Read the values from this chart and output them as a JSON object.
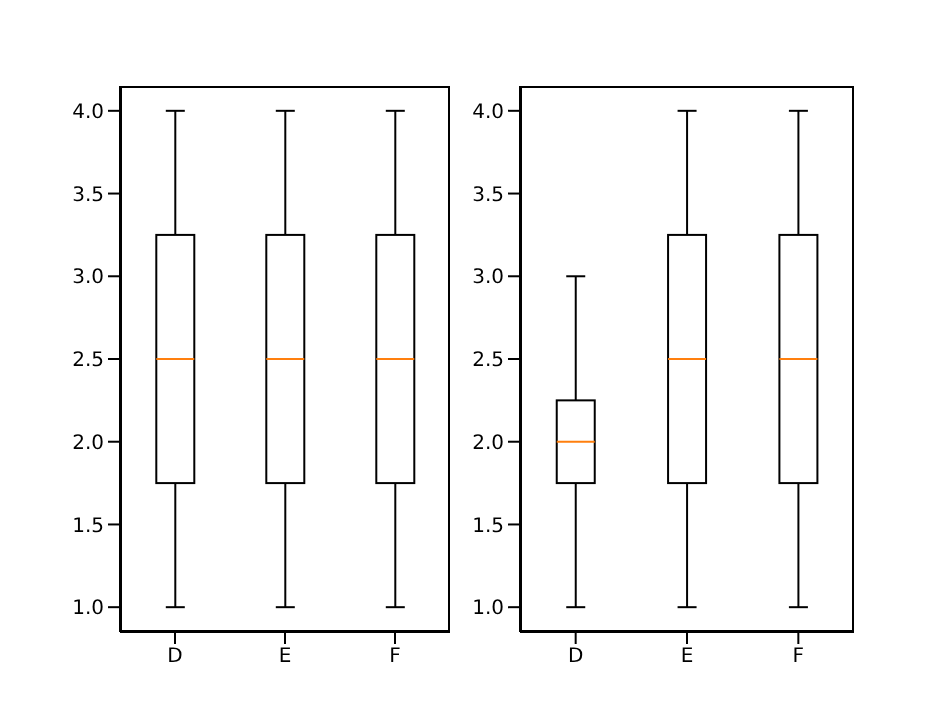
{
  "chart_data": [
    {
      "type": "box",
      "categories": [
        "D",
        "E",
        "F"
      ],
      "boxes": [
        {
          "low": 1,
          "q1": 1.75,
          "median": 2.5,
          "q3": 3.25,
          "high": 4
        },
        {
          "low": 1,
          "q1": 1.75,
          "median": 2.5,
          "q3": 3.25,
          "high": 4
        },
        {
          "low": 1,
          "q1": 1.75,
          "median": 2.5,
          "q3": 3.25,
          "high": 4
        }
      ],
      "ylim": [
        0.85,
        4.15
      ],
      "yticks": [
        {
          "value": 1,
          "label": "1.0"
        },
        {
          "value": 1.5,
          "label": "1.5"
        },
        {
          "value": 2,
          "label": "2.0"
        },
        {
          "value": 2.5,
          "label": "2.5"
        },
        {
          "value": 3,
          "label": "3.0"
        },
        {
          "value": 3.5,
          "label": "3.5"
        },
        {
          "value": 4,
          "label": "4.0"
        }
      ]
    },
    {
      "type": "box",
      "categories": [
        "D",
        "E",
        "F"
      ],
      "boxes": [
        {
          "low": 1,
          "q1": 1.75,
          "median": 2,
          "q3": 2.25,
          "high": 3
        },
        {
          "low": 1,
          "q1": 1.75,
          "median": 2.5,
          "q3": 3.25,
          "high": 4
        },
        {
          "low": 1,
          "q1": 1.75,
          "median": 2.5,
          "q3": 3.25,
          "high": 4
        }
      ],
      "ylim": [
        0.85,
        4.15
      ],
      "yticks": [
        {
          "value": 1,
          "label": "1.0"
        },
        {
          "value": 1.5,
          "label": "1.5"
        },
        {
          "value": 2,
          "label": "2.0"
        },
        {
          "value": 2.5,
          "label": "2.5"
        },
        {
          "value": 3,
          "label": "3.0"
        },
        {
          "value": 3.5,
          "label": "3.5"
        },
        {
          "value": 4,
          "label": "4.0"
        }
      ]
    }
  ]
}
